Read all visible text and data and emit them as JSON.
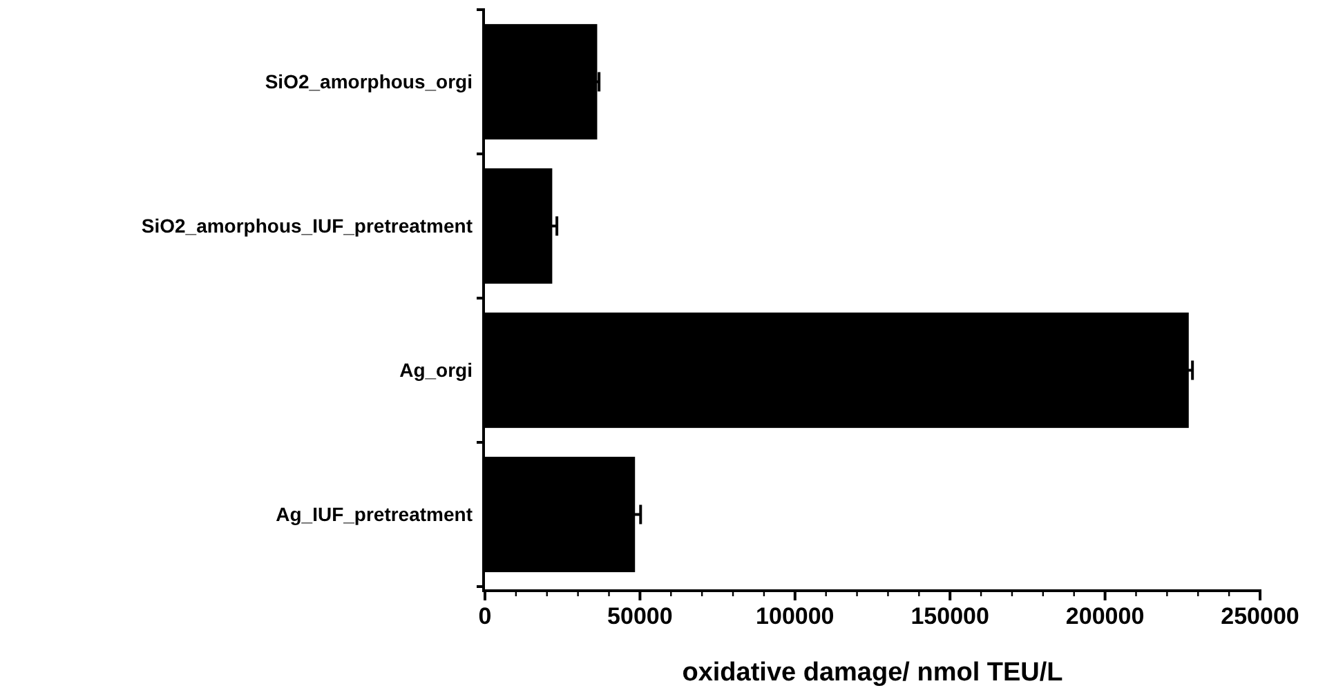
{
  "chart_data": {
    "type": "bar",
    "orientation": "horizontal",
    "xlabel": "oxidative damage/ nmol TEU/L",
    "categories": [
      "SiO2_amorphous_orgi",
      "SiO2_amorphous_IUF_pretreatment",
      "Ag_orgi",
      "Ag_IUF_pretreatment"
    ],
    "values": [
      36200,
      21700,
      227000,
      48400
    ],
    "errors": [
      600,
      1500,
      1200,
      1800
    ],
    "color": "#000000",
    "xlim": [
      0,
      250000
    ],
    "xticks": [
      0,
      {
        "value": 10000,
        "label": null
      },
      {
        "value": 20000,
        "label": null
      },
      {
        "value": 30000,
        "label": null
      },
      {
        "value": 40000,
        "label": null
      },
      50000,
      {
        "value": 60000,
        "label": null
      },
      {
        "value": 70000,
        "label": null
      },
      {
        "value": 80000,
        "label": null
      },
      {
        "value": 90000,
        "label": null
      },
      100000,
      {
        "value": 110000,
        "label": null
      },
      {
        "value": 120000,
        "label": null
      },
      {
        "value": 130000,
        "label": null
      },
      {
        "value": 140000,
        "label": null
      },
      150000,
      {
        "value": 160000,
        "label": null
      },
      {
        "value": 170000,
        "label": null
      },
      {
        "value": 180000,
        "label": null
      },
      {
        "value": 190000,
        "label": null
      },
      200000,
      {
        "value": 210000,
        "label": null
      },
      {
        "value": 220000,
        "label": null
      },
      {
        "value": 230000,
        "label": null
      },
      {
        "value": 240000,
        "label": null
      },
      250000
    ],
    "grid": false
  }
}
